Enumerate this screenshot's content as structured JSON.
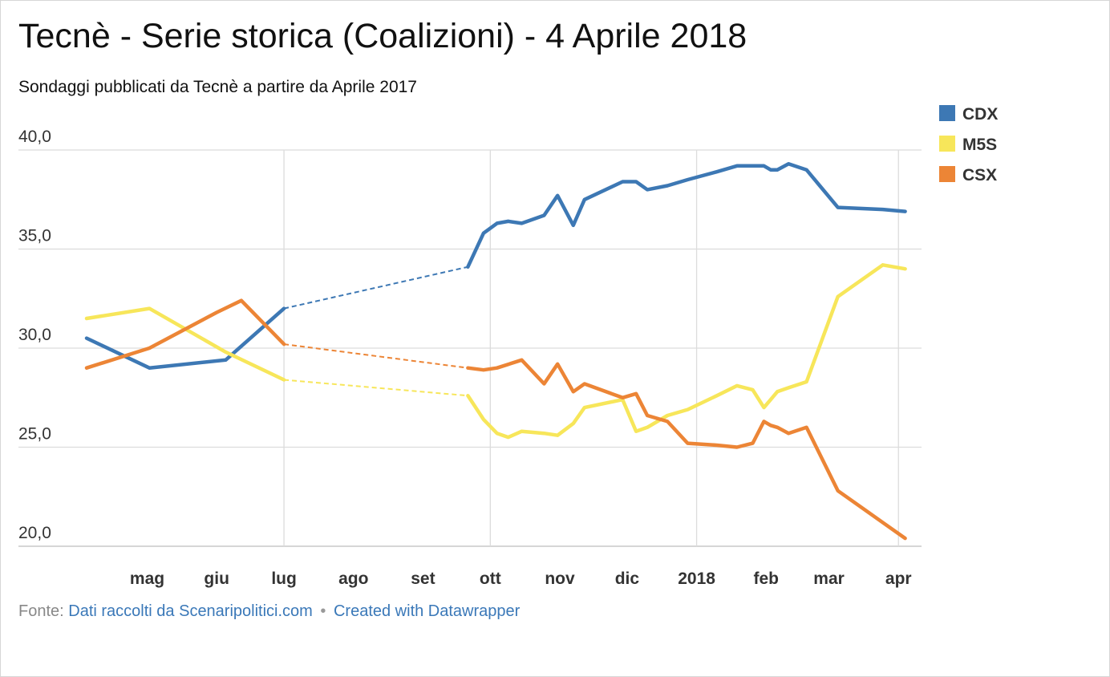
{
  "header": {
    "title": "Tecnè - Serie storica (Coalizioni) - 4 Aprile 2018",
    "subtitle": "Sondaggi pubblicati da Tecnè a partire da Aprile 2017"
  },
  "footer": {
    "source_label": "Fonte:",
    "source_link": "Dati raccolti da Scenaripolitici.com",
    "separator": "•",
    "credit_link": "Created with Datawrapper"
  },
  "colors": {
    "CDX": "#3d78b4",
    "M5S": "#f7e65a",
    "CSX": "#ec8536",
    "grid": "#dcdcdc",
    "axis_text": "#333333"
  },
  "chart_data": {
    "type": "line",
    "x_axis": {
      "type": "date",
      "range": [
        "2017-04-04",
        "2018-04-12"
      ],
      "tick_labels": [
        {
          "date": "2017-05-01",
          "label": "mag"
        },
        {
          "date": "2017-06-01",
          "label": "giu"
        },
        {
          "date": "2017-07-01",
          "label": "lug"
        },
        {
          "date": "2017-08-01",
          "label": "ago"
        },
        {
          "date": "2017-09-01",
          "label": "set"
        },
        {
          "date": "2017-10-01",
          "label": "ott"
        },
        {
          "date": "2017-11-01",
          "label": "nov"
        },
        {
          "date": "2017-12-01",
          "label": "dic"
        },
        {
          "date": "2018-01-01",
          "label": "2018"
        },
        {
          "date": "2018-02-01",
          "label": "feb"
        },
        {
          "date": "2018-03-01",
          "label": "mar"
        },
        {
          "date": "2018-04-01",
          "label": "apr"
        }
      ],
      "vertical_grid_at": [
        "2017-07-01",
        "2017-10-01",
        "2018-01-01",
        "2018-04-01"
      ]
    },
    "y_axis": {
      "range": [
        20,
        40
      ],
      "ticks": [
        20,
        25,
        30,
        35,
        40
      ],
      "tick_labels": [
        "20,0",
        "25,0",
        "30,0",
        "35,0",
        "40,0"
      ]
    },
    "grid": true,
    "legend_position": "top-right",
    "dashed_gaps": [
      [
        "2017-07-01",
        "2017-09-21"
      ],
      [
        "2018-02-11",
        "2018-03-05"
      ]
    ],
    "series": [
      {
        "name": "CDX",
        "points": [
          [
            "2017-04-04",
            30.5
          ],
          [
            "2017-05-02",
            29.0
          ],
          [
            "2017-06-05",
            29.4
          ],
          [
            "2017-07-01",
            32.0
          ],
          [
            "2017-09-21",
            34.1
          ],
          [
            "2017-09-28",
            35.8
          ],
          [
            "2017-10-04",
            36.3
          ],
          [
            "2017-10-09",
            36.4
          ],
          [
            "2017-10-15",
            36.3
          ],
          [
            "2017-10-25",
            36.7
          ],
          [
            "2017-10-31",
            37.7
          ],
          [
            "2017-11-07",
            36.2
          ],
          [
            "2017-11-12",
            37.5
          ],
          [
            "2017-11-29",
            38.4
          ],
          [
            "2017-12-05",
            38.4
          ],
          [
            "2017-12-10",
            38.0
          ],
          [
            "2017-12-19",
            38.2
          ],
          [
            "2017-12-28",
            38.5
          ],
          [
            "2018-01-10",
            38.9
          ],
          [
            "2018-01-19",
            39.2
          ],
          [
            "2018-01-31",
            39.2
          ],
          [
            "2018-02-03",
            39.0
          ],
          [
            "2018-02-06",
            39.0
          ],
          [
            "2018-02-11",
            39.3
          ],
          [
            "2018-02-19",
            39.0
          ],
          [
            "2018-03-05",
            37.1
          ],
          [
            "2018-03-25",
            37.0
          ],
          [
            "2018-04-04",
            36.9
          ]
        ]
      },
      {
        "name": "M5S",
        "points": [
          [
            "2017-04-04",
            31.5
          ],
          [
            "2017-05-02",
            32.0
          ],
          [
            "2017-06-05",
            29.8
          ],
          [
            "2017-07-01",
            28.4
          ],
          [
            "2017-09-21",
            27.6
          ],
          [
            "2017-09-28",
            26.4
          ],
          [
            "2017-10-04",
            25.7
          ],
          [
            "2017-10-09",
            25.5
          ],
          [
            "2017-10-15",
            25.8
          ],
          [
            "2017-10-25",
            25.7
          ],
          [
            "2017-10-31",
            25.6
          ],
          [
            "2017-11-07",
            26.2
          ],
          [
            "2017-11-12",
            27.0
          ],
          [
            "2017-11-29",
            27.4
          ],
          [
            "2017-12-05",
            25.8
          ],
          [
            "2017-12-10",
            26.0
          ],
          [
            "2017-12-19",
            26.6
          ],
          [
            "2017-12-28",
            26.9
          ],
          [
            "2018-01-10",
            27.6
          ],
          [
            "2018-01-19",
            28.1
          ],
          [
            "2018-01-26",
            27.9
          ],
          [
            "2018-01-31",
            27.0
          ],
          [
            "2018-02-03",
            27.4
          ],
          [
            "2018-02-06",
            27.8
          ],
          [
            "2018-02-11",
            28.0
          ],
          [
            "2018-02-19",
            28.3
          ],
          [
            "2018-03-05",
            32.6
          ],
          [
            "2018-03-25",
            34.2
          ],
          [
            "2018-04-04",
            34.0
          ]
        ]
      },
      {
        "name": "CSX",
        "points": [
          [
            "2017-04-04",
            29.0
          ],
          [
            "2017-05-02",
            30.0
          ],
          [
            "2017-06-01",
            31.8
          ],
          [
            "2017-06-12",
            32.4
          ],
          [
            "2017-07-01",
            30.2
          ],
          [
            "2017-09-21",
            29.0
          ],
          [
            "2017-09-28",
            28.9
          ],
          [
            "2017-10-04",
            29.0
          ],
          [
            "2017-10-15",
            29.4
          ],
          [
            "2017-10-25",
            28.2
          ],
          [
            "2017-10-31",
            29.2
          ],
          [
            "2017-11-07",
            27.8
          ],
          [
            "2017-11-12",
            28.2
          ],
          [
            "2017-11-29",
            27.5
          ],
          [
            "2017-12-05",
            27.7
          ],
          [
            "2017-12-10",
            26.6
          ],
          [
            "2017-12-19",
            26.3
          ],
          [
            "2017-12-28",
            25.2
          ],
          [
            "2018-01-10",
            25.1
          ],
          [
            "2018-01-19",
            25.0
          ],
          [
            "2018-01-26",
            25.2
          ],
          [
            "2018-01-31",
            26.3
          ],
          [
            "2018-02-03",
            26.1
          ],
          [
            "2018-02-06",
            26.0
          ],
          [
            "2018-02-11",
            25.7
          ],
          [
            "2018-02-19",
            26.0
          ],
          [
            "2018-03-05",
            22.8
          ],
          [
            "2018-03-25",
            21.2
          ],
          [
            "2018-04-04",
            20.4
          ]
        ]
      }
    ]
  }
}
